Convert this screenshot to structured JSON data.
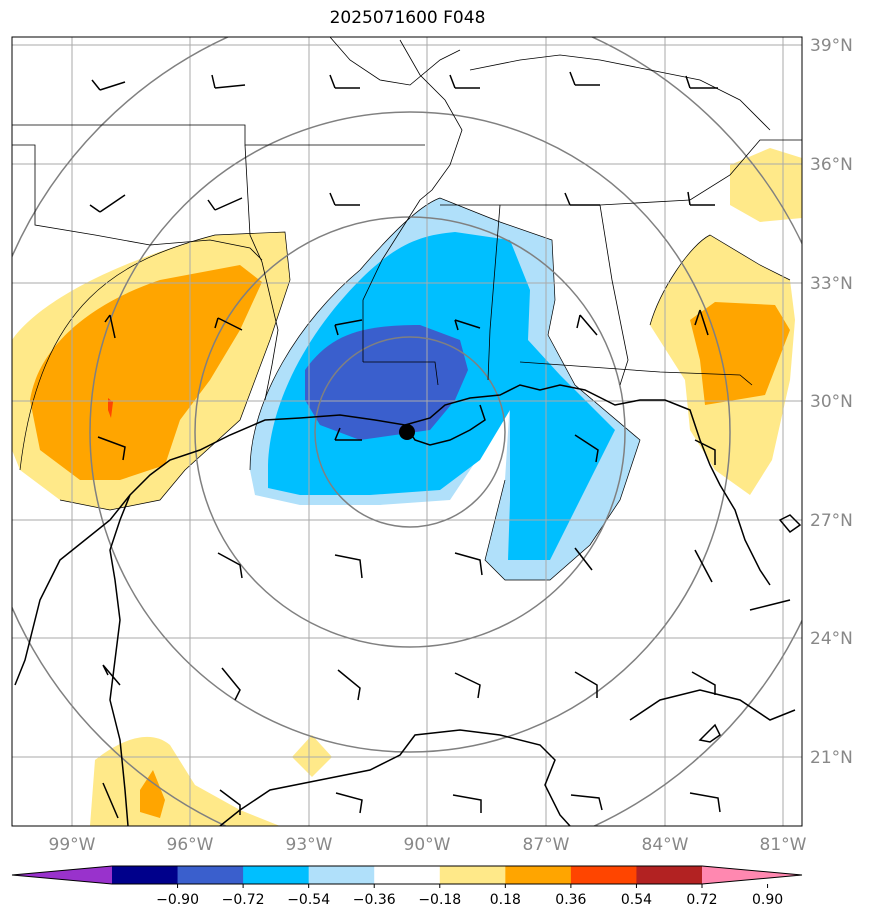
{
  "title": "2025071600 F048",
  "lat_labels": [
    "39°N",
    "36°N",
    "33°N",
    "30°N",
    "27°N",
    "24°N",
    "21°N"
  ],
  "lon_labels": [
    "99°W",
    "96°W",
    "93°W",
    "90°W",
    "87°W",
    "84°W",
    "81°W"
  ],
  "colorbar": {
    "ticks": [
      "−0.90",
      "−0.72",
      "−0.54",
      "−0.36",
      "−0.18",
      "0.18",
      "0.36",
      "0.54",
      "0.72",
      "0.90"
    ],
    "colors": [
      "#9932cc",
      "#00008b",
      "#3a5fcd",
      "#00bfff",
      "#b0e0fa",
      "#ffffff",
      "#ffe989",
      "#ffa500",
      "#ff4500",
      "#b22222",
      "#ff88b0"
    ]
  },
  "center_marker": {
    "lon": -90.5,
    "lat": 29.2
  },
  "colors": {
    "grid": "#aaaaaa",
    "range_rings": "#808080",
    "coast": "#000000"
  }
}
